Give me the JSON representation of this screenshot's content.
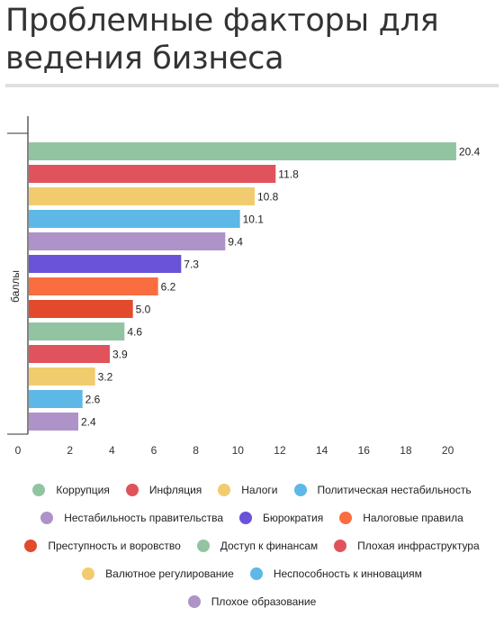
{
  "title": "Проблемные факторы для ведения бизнеса",
  "chart_data": {
    "type": "bar",
    "orientation": "horizontal",
    "ylabel": "баллы",
    "xlim": [
      0,
      21
    ],
    "xticks": [
      0,
      2,
      4,
      6,
      8,
      10,
      12,
      14,
      16,
      18,
      20
    ],
    "grid": false,
    "legend_position": "bottom",
    "categories": [
      "Коррупция",
      "Инфляция",
      "Налоги",
      "Политическая нестабильность",
      "Нестабильность правительства",
      "Бюрократия",
      "Налоговые правила",
      "Преступность и воровство",
      "Доступ к финансам",
      "Плохая инфраструктура",
      "Валютное регулирование",
      "Неспособность к инновациям",
      "Плохое образование"
    ],
    "values": [
      20.4,
      11.8,
      10.8,
      10.1,
      9.4,
      7.3,
      6.2,
      5.0,
      4.6,
      3.9,
      3.2,
      2.6,
      2.4
    ],
    "value_labels": [
      "20.4",
      "11.8",
      "10.8",
      "10.1",
      "9.4",
      "7.3",
      "6.2",
      "5.0",
      "4.6",
      "3.9",
      "3.2",
      "2.6",
      "2.4"
    ],
    "colors": [
      "#93c4a2",
      "#e0535c",
      "#f1cc6e",
      "#5db8e7",
      "#ae93c9",
      "#6a52d9",
      "#f96d40",
      "#e24a2b",
      "#93c4a2",
      "#e0535c",
      "#f1cc6e",
      "#5db8e7",
      "#ae93c9"
    ]
  },
  "legend_rows": [
    [
      0,
      1,
      2,
      3
    ],
    [
      4,
      5,
      6
    ],
    [
      7,
      8,
      9
    ],
    [
      10,
      11
    ],
    [
      12
    ]
  ]
}
